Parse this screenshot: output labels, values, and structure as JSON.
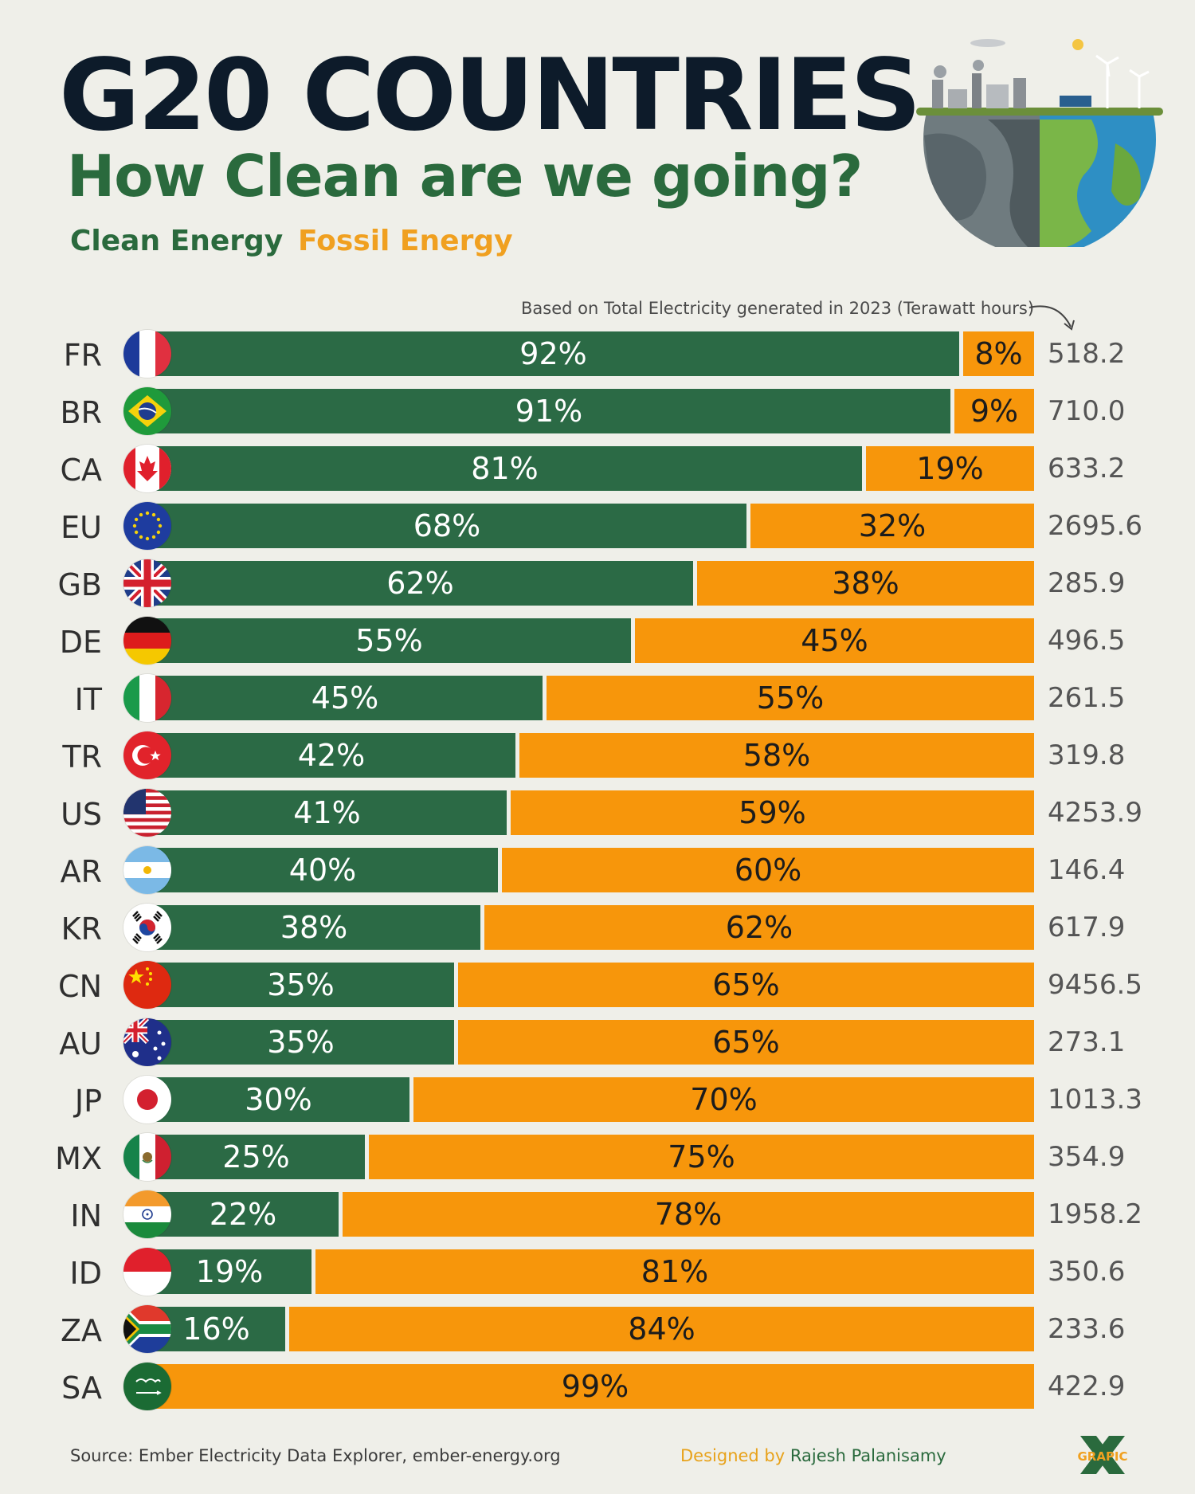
{
  "header": {
    "title": "G20 COUNTRIES",
    "subtitle": "How Clean are we going?",
    "legend_clean": "Clean Energy",
    "legend_fossil": "Fossil Energy",
    "note": "Based on Total Electricity generated in 2023 (Terawatt hours)"
  },
  "colors": {
    "clean": "#2b6a45",
    "fossil": "#f7960b",
    "title": "#0d1b2a",
    "subtitle": "#2a6a3d",
    "legend_fossil": "#f0a020"
  },
  "chart_data": {
    "type": "bar",
    "orientation": "horizontal",
    "stacked": true,
    "unit": "%",
    "categories": [
      "FR",
      "BR",
      "CA",
      "EU",
      "GB",
      "DE",
      "IT",
      "TR",
      "US",
      "AR",
      "KR",
      "CN",
      "AU",
      "JP",
      "MX",
      "IN",
      "ID",
      "ZA",
      "SA"
    ],
    "series": [
      {
        "name": "Clean Energy",
        "values": [
          92,
          91,
          81,
          68,
          62,
          55,
          45,
          42,
          41,
          40,
          38,
          35,
          35,
          30,
          25,
          22,
          19,
          16,
          1
        ]
      },
      {
        "name": "Fossil Energy",
        "values": [
          8,
          9,
          19,
          32,
          38,
          45,
          55,
          58,
          59,
          60,
          62,
          65,
          65,
          70,
          75,
          78,
          81,
          84,
          99
        ]
      }
    ],
    "clean_labels": [
      "92%",
      "91%",
      "81%",
      "68%",
      "62%",
      "55%",
      "45%",
      "42%",
      "41%",
      "40%",
      "38%",
      "35%",
      "35%",
      "30%",
      "25%",
      "22%",
      "19%",
      "16%",
      ""
    ],
    "fossil_labels": [
      "8%",
      "9%",
      "19%",
      "32%",
      "38%",
      "45%",
      "55%",
      "58%",
      "59%",
      "60%",
      "62%",
      "65%",
      "65%",
      "70%",
      "75%",
      "78%",
      "81%",
      "84%",
      "99%"
    ],
    "totals_twh": [
      "518.2",
      "710.0",
      "633.2",
      "2695.6",
      "285.9",
      "496.5",
      "261.5",
      "319.8",
      "4253.9",
      "146.4",
      "617.9",
      "9456.5",
      "273.1",
      "1013.3",
      "354.9",
      "1958.2",
      "350.6",
      "233.6",
      "422.9"
    ],
    "xlim": [
      0,
      100
    ],
    "grid": false
  },
  "flags": [
    "france",
    "brazil",
    "canada",
    "eu",
    "uk",
    "germany",
    "italy",
    "turkey",
    "usa",
    "argentina",
    "south-korea",
    "china",
    "australia",
    "japan",
    "mexico",
    "india",
    "indonesia",
    "south-africa",
    "saudi-arabia"
  ],
  "footer": {
    "source": "Source: Ember Electricity Data Explorer, ember-energy.org",
    "designed_by_prefix": "Designed by",
    "designer": "Rajesh Palanisamy",
    "logo_text": "GRAPIC"
  }
}
